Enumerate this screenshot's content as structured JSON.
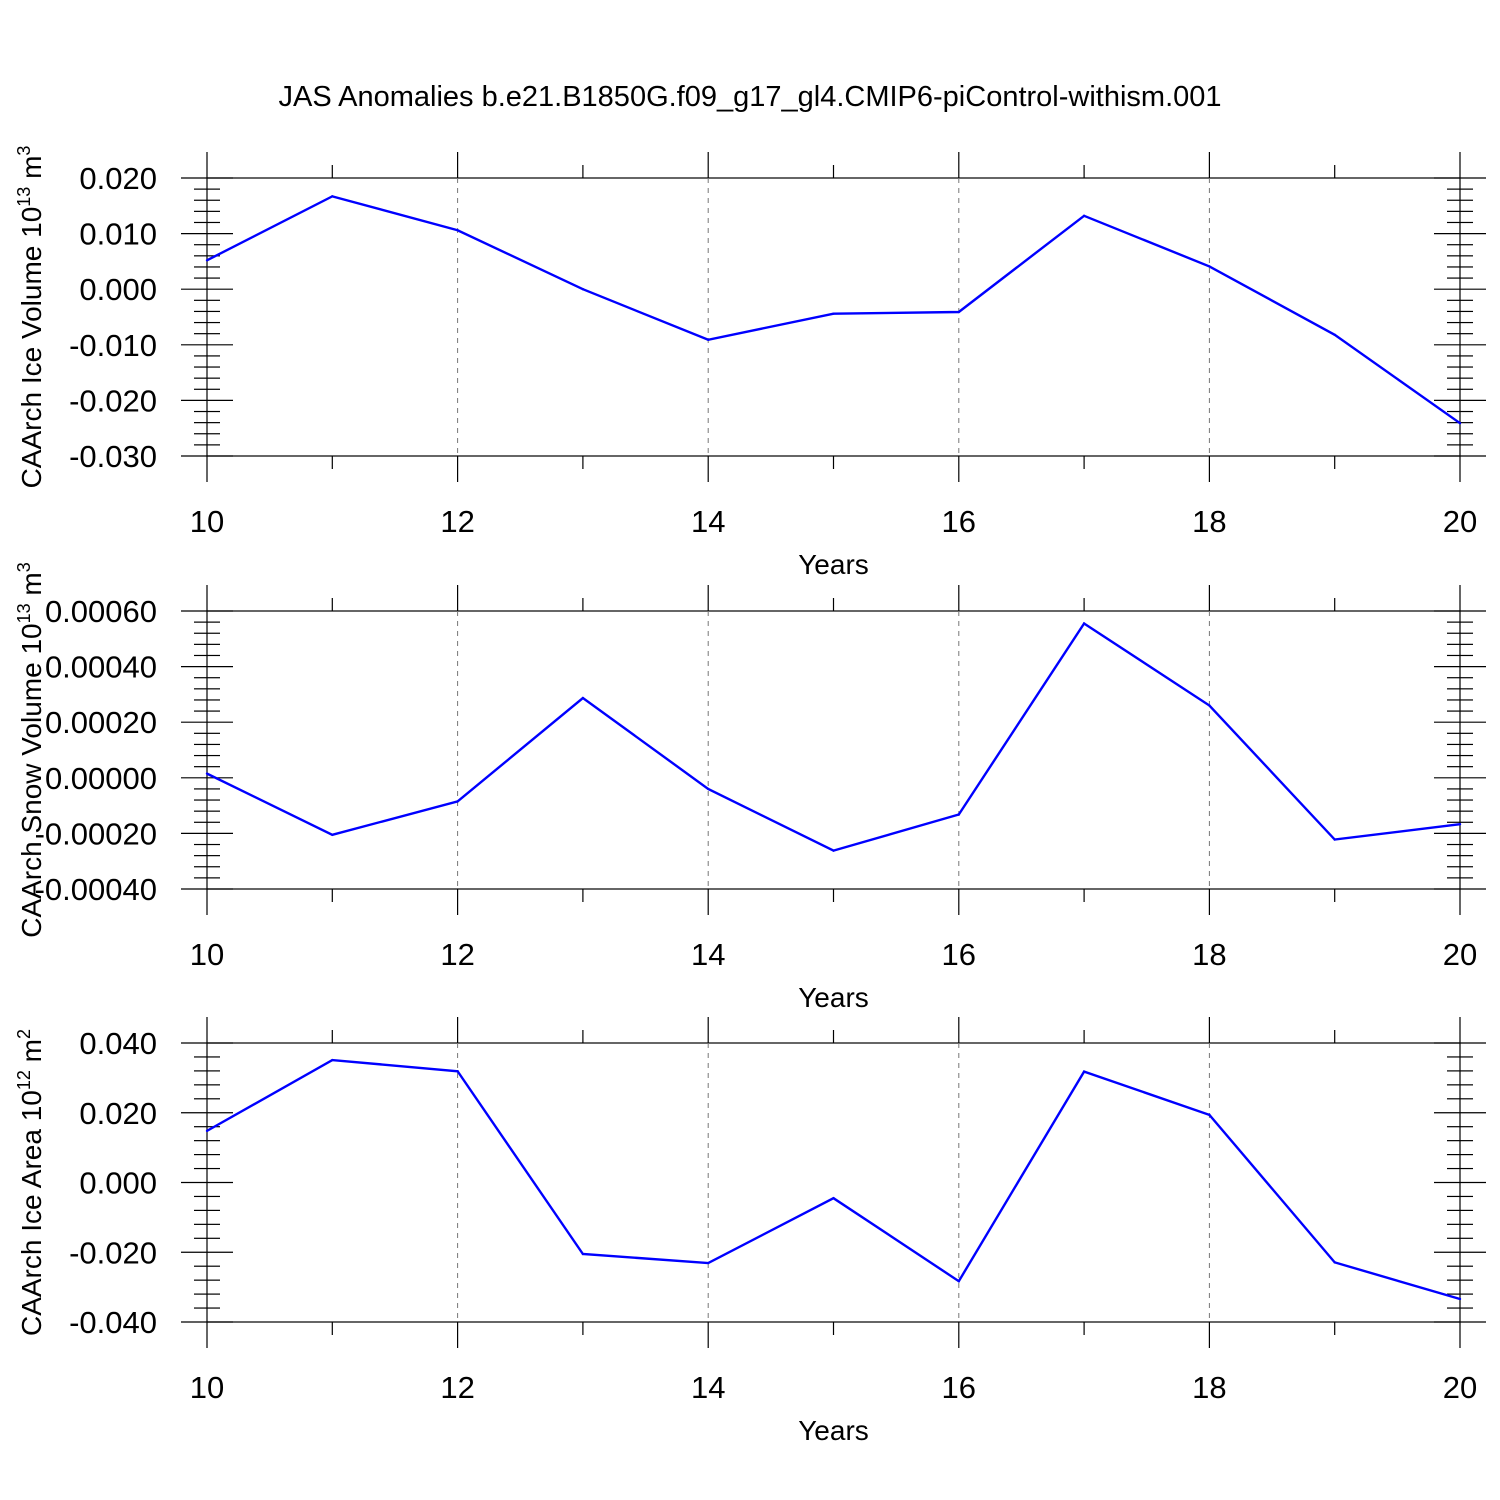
{
  "title": "JAS Anomalies b.e21.B1850G.f09_g17_gl4.CMIP6-piControl-withism.001",
  "colors": {
    "line": "#0000ff",
    "grid": "#777777",
    "axis": "#000000"
  },
  "chart_data": [
    {
      "type": "line",
      "xlabel": "Years",
      "ylabel": {
        "text": "CAArch Ice Volume 10",
        "sup": "13",
        "unit": " m",
        "unit_sup": "3"
      },
      "xlim": [
        10,
        20
      ],
      "ylim": [
        -0.03,
        0.02
      ],
      "xticks": [
        "10",
        "12",
        "14",
        "16",
        "18",
        "20"
      ],
      "yticks": [
        "0.020",
        "0.010",
        "0.000",
        "-0.010",
        "-0.020",
        "-0.030"
      ],
      "grid": "vertical dashed at major x ticks",
      "x": [
        10,
        11,
        12,
        13,
        14,
        15,
        16,
        17,
        18,
        19,
        20
      ],
      "values": [
        0.0052,
        0.0167,
        0.0106,
        0.0,
        -0.0091,
        -0.0044,
        -0.0041,
        0.0132,
        0.0041,
        -0.0082,
        -0.0241
      ]
    },
    {
      "type": "line",
      "xlabel": "Years",
      "ylabel": {
        "text": "CAArch Snow Volume 10",
        "sup": "13",
        "unit": " m",
        "unit_sup": "3"
      },
      "xlim": [
        10,
        20
      ],
      "ylim": [
        -0.0004,
        0.0006
      ],
      "xticks": [
        "10",
        "12",
        "14",
        "16",
        "18",
        "20"
      ],
      "yticks": [
        "0.00060",
        "0.00040",
        "0.00020",
        "0.00000",
        "-0.00020",
        "-0.00040"
      ],
      "grid": "vertical dashed at major x ticks",
      "x": [
        10,
        11,
        12,
        13,
        14,
        15,
        16,
        17,
        18,
        19,
        20
      ],
      "values": [
        1.5e-05,
        -0.000205,
        -8.5e-05,
        0.000287,
        -4e-05,
        -0.000262,
        -0.000132,
        0.000555,
        0.00026,
        -0.000222,
        -0.000167
      ]
    },
    {
      "type": "line",
      "xlabel": "Years",
      "ylabel": {
        "text": "CAArch Ice Area 10",
        "sup": "12",
        "unit": " m",
        "unit_sup": "2"
      },
      "xlim": [
        10,
        20
      ],
      "ylim": [
        -0.04,
        0.04
      ],
      "xticks": [
        "10",
        "12",
        "14",
        "16",
        "18",
        "20"
      ],
      "yticks": [
        "0.040",
        "0.020",
        "0.000",
        "-0.020",
        "-0.040"
      ],
      "grid": "vertical dashed at major x ticks",
      "x": [
        10,
        11,
        12,
        13,
        14,
        15,
        16,
        17,
        18,
        19,
        20
      ],
      "values": [
        0.0148,
        0.0351,
        0.0319,
        -0.0205,
        -0.0231,
        -0.0045,
        -0.0283,
        0.0318,
        0.0194,
        -0.0229,
        -0.0334
      ]
    }
  ]
}
